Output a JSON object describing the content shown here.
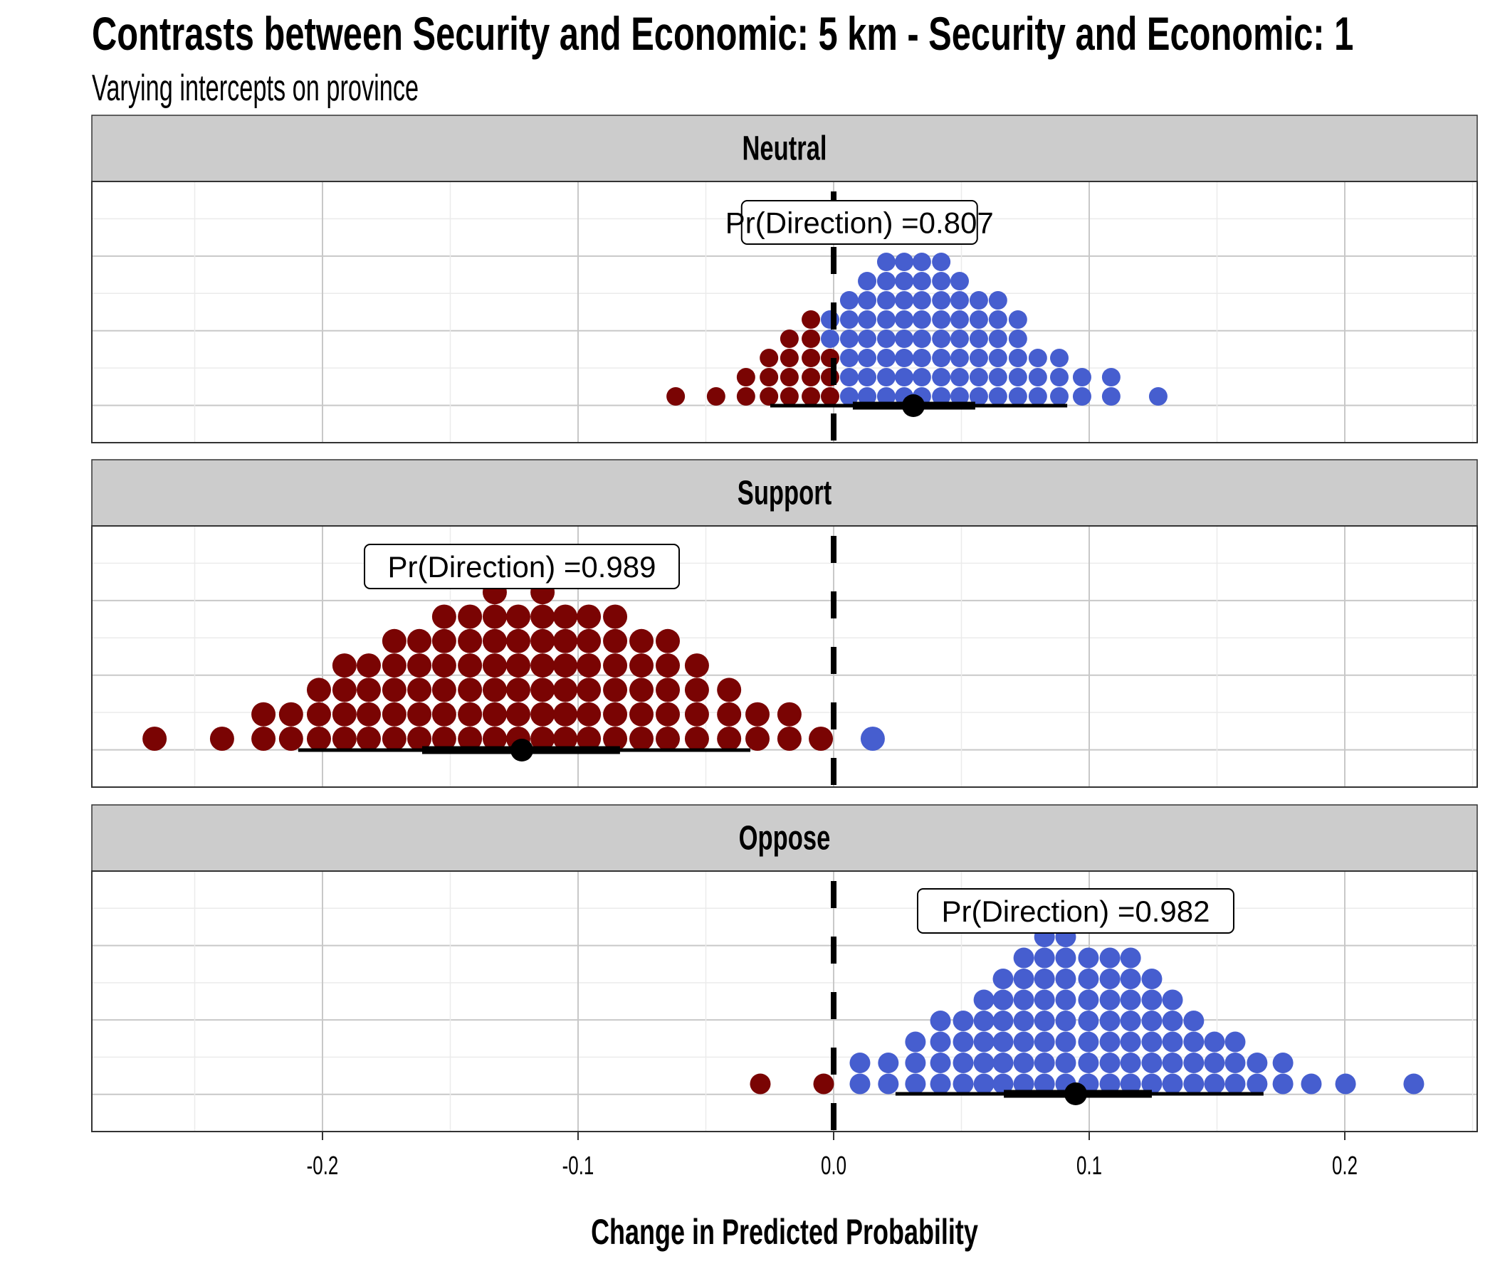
{
  "title": "Contrasts between Security and Economic: 5 km - Security and Economic: 1",
  "subtitle": "Varying intercepts on province",
  "colors": {
    "negative": "#7a0403",
    "positive": "#465ecf",
    "strip_bg": "#cccccc",
    "interval": "#000000"
  },
  "chart_data": {
    "type": "dotplot",
    "title": "Contrasts between Security and Economic: 5 km - Security and Economic: 1",
    "subtitle": "Varying intercepts on province",
    "xlabel": "Change in Predicted Probability",
    "ylabel": "",
    "xlim": [
      -0.29,
      0.253
    ],
    "x_ticks": [
      -0.2,
      -0.1,
      0.0,
      0.1,
      0.2
    ],
    "x_tick_labels": [
      "-0.2",
      "-0.1",
      "0.0",
      "0.1",
      "0.2"
    ],
    "reference_line": 0.0,
    "grid": true,
    "legend": "none",
    "panels": [
      {
        "label": "Neutral",
        "annotation": "Pr(Direction) =0.807",
        "annotation_x": 0.0101,
        "point_estimate": 0.0312,
        "interval_66": [
          0.0075,
          0.0554
        ],
        "interval_95": [
          -0.0248,
          0.0914
        ],
        "dots": [
          {
            "x": -0.0618,
            "neg": 1,
            "pos": 0
          },
          {
            "x": -0.046,
            "neg": 1,
            "pos": 0
          },
          {
            "x": -0.0343,
            "neg": 2,
            "pos": 0
          },
          {
            "x": -0.0253,
            "neg": 3,
            "pos": 0
          },
          {
            "x": -0.0173,
            "neg": 4,
            "pos": 0
          },
          {
            "x": -0.0089,
            "neg": 5,
            "pos": 0
          },
          {
            "x": -0.0014,
            "neg": 3,
            "pos": 2
          },
          {
            "x": 0.0061,
            "neg": 0,
            "pos": 6
          },
          {
            "x": 0.0131,
            "neg": 0,
            "pos": 7
          },
          {
            "x": 0.0206,
            "neg": 0,
            "pos": 8
          },
          {
            "x": 0.0276,
            "neg": 0,
            "pos": 8
          },
          {
            "x": 0.0345,
            "neg": 0,
            "pos": 8
          },
          {
            "x": 0.0421,
            "neg": 0,
            "pos": 8
          },
          {
            "x": 0.0493,
            "neg": 0,
            "pos": 7
          },
          {
            "x": 0.0568,
            "neg": 0,
            "pos": 6
          },
          {
            "x": 0.0643,
            "neg": 0,
            "pos": 6
          },
          {
            "x": 0.0721,
            "neg": 0,
            "pos": 5
          },
          {
            "x": 0.0799,
            "neg": 0,
            "pos": 3
          },
          {
            "x": 0.0883,
            "neg": 0,
            "pos": 3
          },
          {
            "x": 0.0972,
            "neg": 0,
            "pos": 2
          },
          {
            "x": 0.1086,
            "neg": 0,
            "pos": 2
          },
          {
            "x": 0.127,
            "neg": 0,
            "pos": 1
          }
        ]
      },
      {
        "label": "Support",
        "annotation": "Pr(Direction) =0.989",
        "annotation_x": -0.122,
        "point_estimate": -0.122,
        "interval_66": [
          -0.161,
          -0.0836
        ],
        "interval_95": [
          -0.2095,
          -0.0326
        ],
        "dots": [
          {
            "x": -0.2657,
            "neg": 1,
            "pos": 0
          },
          {
            "x": -0.2393,
            "neg": 1,
            "pos": 0
          },
          {
            "x": -0.2231,
            "neg": 2,
            "pos": 0
          },
          {
            "x": -0.2123,
            "neg": 2,
            "pos": 0
          },
          {
            "x": -0.2014,
            "neg": 3,
            "pos": 0
          },
          {
            "x": -0.1914,
            "neg": 4,
            "pos": 0
          },
          {
            "x": -0.1819,
            "neg": 4,
            "pos": 0
          },
          {
            "x": -0.1719,
            "neg": 5,
            "pos": 0
          },
          {
            "x": -0.1621,
            "neg": 5,
            "pos": 0
          },
          {
            "x": -0.1524,
            "neg": 6,
            "pos": 0
          },
          {
            "x": -0.1423,
            "neg": 6,
            "pos": 0
          },
          {
            "x": -0.1326,
            "neg": 7,
            "pos": 0
          },
          {
            "x": -0.1234,
            "neg": 6,
            "pos": 0
          },
          {
            "x": -0.1139,
            "neg": 7,
            "pos": 0
          },
          {
            "x": -0.105,
            "neg": 6,
            "pos": 0
          },
          {
            "x": -0.0958,
            "neg": 6,
            "pos": 0
          },
          {
            "x": -0.0855,
            "neg": 6,
            "pos": 0
          },
          {
            "x": -0.0752,
            "neg": 5,
            "pos": 0
          },
          {
            "x": -0.0649,
            "neg": 5,
            "pos": 0
          },
          {
            "x": -0.0535,
            "neg": 4,
            "pos": 0
          },
          {
            "x": -0.0409,
            "neg": 3,
            "pos": 0
          },
          {
            "x": -0.0298,
            "neg": 2,
            "pos": 0
          },
          {
            "x": -0.0173,
            "neg": 2,
            "pos": 0
          },
          {
            "x": -0.005,
            "neg": 1,
            "pos": 0
          },
          {
            "x": 0.0153,
            "neg": 0,
            "pos": 1
          }
        ]
      },
      {
        "label": "Oppose",
        "annotation": "Pr(Direction) =0.982",
        "annotation_x": 0.0947,
        "point_estimate": 0.0947,
        "interval_66": [
          0.0666,
          0.1245
        ],
        "interval_95": [
          0.0242,
          0.1682
        ],
        "dots": [
          {
            "x": -0.0287,
            "neg": 1,
            "pos": 0
          },
          {
            "x": -0.0039,
            "neg": 1,
            "pos": 0
          },
          {
            "x": 0.0103,
            "neg": 0,
            "pos": 2
          },
          {
            "x": 0.0214,
            "neg": 0,
            "pos": 2
          },
          {
            "x": 0.032,
            "neg": 0,
            "pos": 3
          },
          {
            "x": 0.0418,
            "neg": 0,
            "pos": 4
          },
          {
            "x": 0.0507,
            "neg": 0,
            "pos": 4
          },
          {
            "x": 0.0588,
            "neg": 0,
            "pos": 5
          },
          {
            "x": 0.0663,
            "neg": 0,
            "pos": 6
          },
          {
            "x": 0.0744,
            "neg": 0,
            "pos": 7
          },
          {
            "x": 0.0825,
            "neg": 0,
            "pos": 8
          },
          {
            "x": 0.0908,
            "neg": 0,
            "pos": 8
          },
          {
            "x": 0.0997,
            "neg": 0,
            "pos": 7
          },
          {
            "x": 0.1081,
            "neg": 0,
            "pos": 7
          },
          {
            "x": 0.1162,
            "neg": 0,
            "pos": 7
          },
          {
            "x": 0.1245,
            "neg": 0,
            "pos": 6
          },
          {
            "x": 0.1326,
            "neg": 0,
            "pos": 5
          },
          {
            "x": 0.1409,
            "neg": 0,
            "pos": 4
          },
          {
            "x": 0.149,
            "neg": 0,
            "pos": 3
          },
          {
            "x": 0.1571,
            "neg": 0,
            "pos": 3
          },
          {
            "x": 0.1657,
            "neg": 0,
            "pos": 2
          },
          {
            "x": 0.1758,
            "neg": 0,
            "pos": 2
          },
          {
            "x": 0.1869,
            "neg": 0,
            "pos": 1
          },
          {
            "x": 0.2003,
            "neg": 0,
            "pos": 1
          },
          {
            "x": 0.227,
            "neg": 0,
            "pos": 1
          }
        ]
      }
    ]
  }
}
